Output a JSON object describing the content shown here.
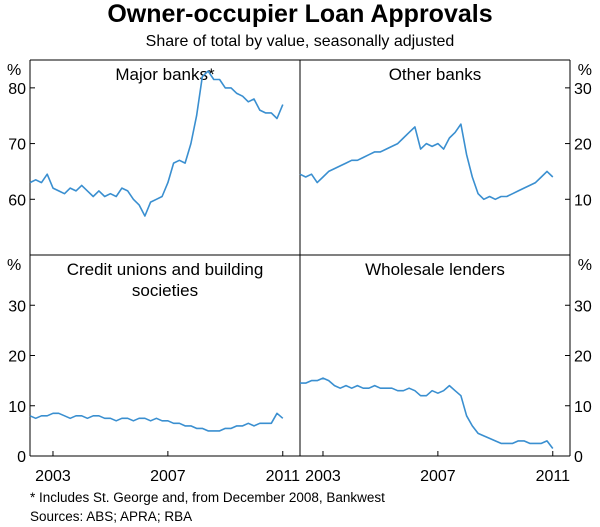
{
  "chart_data": {
    "type": "line",
    "title": "Owner-occupier Loan Approvals",
    "subtitle": "Share of total by value, seasonally adjusted",
    "unit_label": "%",
    "x_ticks": [
      "2003",
      "2007",
      "2011"
    ],
    "x_range": [
      2002.2,
      2011.6
    ],
    "line_color": "#3a8fd0",
    "footnotes": [
      "*     Includes St. George and, from December 2008, Bankwest",
      "Sources: ABS; APRA; RBA"
    ],
    "panels": [
      {
        "title": [
          "Major banks*"
        ],
        "ylim": [
          50,
          85
        ],
        "yticks": [
          60,
          70,
          80
        ],
        "axis_side": "left",
        "series": {
          "x": [
            2002.2,
            2002.4,
            2002.6,
            2002.8,
            2003.0,
            2003.2,
            2003.4,
            2003.6,
            2003.8,
            2004.0,
            2004.2,
            2004.4,
            2004.6,
            2004.8,
            2005.0,
            2005.2,
            2005.4,
            2005.6,
            2005.8,
            2006.0,
            2006.2,
            2006.4,
            2006.6,
            2006.8,
            2007.0,
            2007.2,
            2007.4,
            2007.6,
            2007.8,
            2008.0,
            2008.2,
            2008.4,
            2008.6,
            2008.8,
            2009.0,
            2009.2,
            2009.4,
            2009.6,
            2009.8,
            2010.0,
            2010.2,
            2010.4,
            2010.6,
            2010.8,
            2011.0
          ],
          "y": [
            63,
            63.5,
            63,
            64.5,
            62,
            61.5,
            61,
            62,
            61.5,
            62.5,
            61.5,
            60.5,
            61.5,
            60.5,
            61,
            60.5,
            62,
            61.5,
            60,
            59,
            57,
            59.5,
            60,
            60.5,
            63,
            66.5,
            67,
            66.5,
            70,
            75,
            82,
            83,
            81.5,
            81.5,
            80,
            80,
            79,
            78.5,
            77.5,
            78,
            76,
            75.5,
            75.5,
            74.5,
            77
          ]
        }
      },
      {
        "title": [
          "Other banks"
        ],
        "ylim": [
          0,
          35
        ],
        "yticks": [
          10,
          20,
          30
        ],
        "axis_side": "right",
        "series": {
          "x": [
            2002.2,
            2002.4,
            2002.6,
            2002.8,
            2003.0,
            2003.2,
            2003.4,
            2003.6,
            2003.8,
            2004.0,
            2004.2,
            2004.4,
            2004.6,
            2004.8,
            2005.0,
            2005.2,
            2005.4,
            2005.6,
            2005.8,
            2006.0,
            2006.2,
            2006.4,
            2006.6,
            2006.8,
            2007.0,
            2007.2,
            2007.4,
            2007.6,
            2007.8,
            2008.0,
            2008.2,
            2008.4,
            2008.6,
            2008.8,
            2009.0,
            2009.2,
            2009.4,
            2009.6,
            2009.8,
            2010.0,
            2010.2,
            2010.4,
            2010.6,
            2010.8,
            2011.0
          ],
          "y": [
            14.5,
            14,
            14.5,
            13,
            14,
            15,
            15.5,
            16,
            16.5,
            17,
            17,
            17.5,
            18,
            18.5,
            18.5,
            19,
            19.5,
            20,
            21,
            22,
            23,
            19,
            20,
            19.5,
            20,
            19,
            21,
            22,
            23.5,
            18,
            14,
            11,
            10,
            10.5,
            10,
            10.5,
            10.5,
            11,
            11.5,
            12,
            12.5,
            13,
            14,
            15,
            14
          ]
        }
      },
      {
        "title": [
          "Credit unions and building",
          "societies"
        ],
        "ylim": [
          0,
          40
        ],
        "yticks": [
          0,
          10,
          20,
          30
        ],
        "axis_side": "left",
        "series": {
          "x": [
            2002.2,
            2002.4,
            2002.6,
            2002.8,
            2003.0,
            2003.2,
            2003.4,
            2003.6,
            2003.8,
            2004.0,
            2004.2,
            2004.4,
            2004.6,
            2004.8,
            2005.0,
            2005.2,
            2005.4,
            2005.6,
            2005.8,
            2006.0,
            2006.2,
            2006.4,
            2006.6,
            2006.8,
            2007.0,
            2007.2,
            2007.4,
            2007.6,
            2007.8,
            2008.0,
            2008.2,
            2008.4,
            2008.6,
            2008.8,
            2009.0,
            2009.2,
            2009.4,
            2009.6,
            2009.8,
            2010.0,
            2010.2,
            2010.4,
            2010.6,
            2010.8,
            2011.0
          ],
          "y": [
            8,
            7.5,
            8,
            8,
            8.5,
            8.5,
            8,
            7.5,
            8,
            8,
            7.5,
            8,
            8,
            7.5,
            7.5,
            7,
            7.5,
            7.5,
            7,
            7.5,
            7.5,
            7,
            7.5,
            7,
            7,
            6.5,
            6.5,
            6,
            6,
            5.5,
            5.5,
            5,
            5,
            5,
            5.5,
            5.5,
            6,
            6,
            6.5,
            6,
            6.5,
            6.5,
            6.5,
            8.5,
            7.5
          ]
        }
      },
      {
        "title": [
          "Wholesale lenders"
        ],
        "ylim": [
          0,
          40
        ],
        "yticks": [
          0,
          10,
          20,
          30
        ],
        "axis_side": "right",
        "series": {
          "x": [
            2002.2,
            2002.4,
            2002.6,
            2002.8,
            2003.0,
            2003.2,
            2003.4,
            2003.6,
            2003.8,
            2004.0,
            2004.2,
            2004.4,
            2004.6,
            2004.8,
            2005.0,
            2005.2,
            2005.4,
            2005.6,
            2005.8,
            2006.0,
            2006.2,
            2006.4,
            2006.6,
            2006.8,
            2007.0,
            2007.2,
            2007.4,
            2007.6,
            2007.8,
            2008.0,
            2008.2,
            2008.4,
            2008.6,
            2008.8,
            2009.0,
            2009.2,
            2009.4,
            2009.6,
            2009.8,
            2010.0,
            2010.2,
            2010.4,
            2010.6,
            2010.8,
            2011.0
          ],
          "y": [
            14.5,
            14.5,
            15,
            15,
            15.5,
            15,
            14,
            13.5,
            14,
            13.5,
            14,
            13.5,
            13.5,
            14,
            13.5,
            13.5,
            13.5,
            13,
            13,
            13.5,
            13,
            12,
            12,
            13,
            12.5,
            13,
            14,
            13,
            12,
            8,
            6,
            4.5,
            4,
            3.5,
            3,
            2.5,
            2.5,
            2.5,
            3,
            3,
            2.5,
            2.5,
            2.5,
            3,
            1.5
          ]
        }
      }
    ]
  }
}
